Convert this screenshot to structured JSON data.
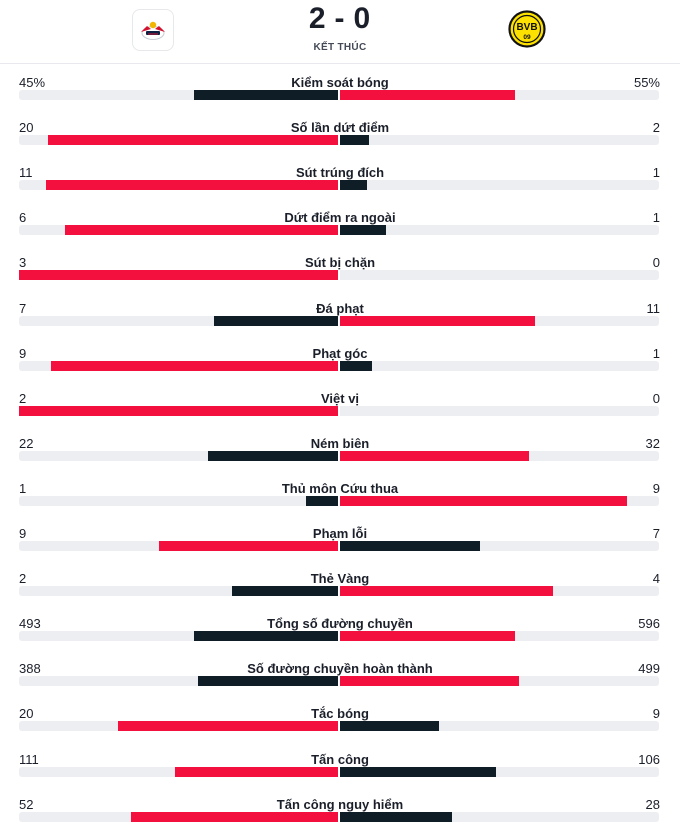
{
  "match": {
    "home_score": "2",
    "away_score": "0",
    "status": "KẾT THÚC"
  },
  "teams": {
    "home": {
      "logo_icon": "rb-leipzig-logo-icon"
    },
    "away": {
      "logo_icon": "bvb-logo-icon",
      "logo_text": "BVB",
      "logo_year": "09"
    }
  },
  "colors": {
    "leader": "#f3103f",
    "trailer": "#0f1d27",
    "track": "#eceef1"
  },
  "stats": [
    {
      "label": "Kiểm soát bóng",
      "home": "45%",
      "away": "55%",
      "home_value": 45,
      "away_value": 55
    },
    {
      "label": "Số lần dứt điểm",
      "home": "20",
      "away": "2",
      "home_value": 20,
      "away_value": 2
    },
    {
      "label": "Sút trúng đích",
      "home": "11",
      "away": "1",
      "home_value": 11,
      "away_value": 1
    },
    {
      "label": "Dứt điểm ra ngoài",
      "home": "6",
      "away": "1",
      "home_value": 6,
      "away_value": 1
    },
    {
      "label": "Sút bị chặn",
      "home": "3",
      "away": "0",
      "home_value": 3,
      "away_value": 0
    },
    {
      "label": "Đá phạt",
      "home": "7",
      "away": "11",
      "home_value": 7,
      "away_value": 11
    },
    {
      "label": "Phạt góc",
      "home": "9",
      "away": "1",
      "home_value": 9,
      "away_value": 1
    },
    {
      "label": "Việt vị",
      "home": "2",
      "away": "0",
      "home_value": 2,
      "away_value": 0
    },
    {
      "label": "Ném biên",
      "home": "22",
      "away": "32",
      "home_value": 22,
      "away_value": 32
    },
    {
      "label": "Thủ môn Cứu thua",
      "home": "1",
      "away": "9",
      "home_value": 1,
      "away_value": 9
    },
    {
      "label": "Phạm lỗi",
      "home": "9",
      "away": "7",
      "home_value": 9,
      "away_value": 7
    },
    {
      "label": "Thẻ Vàng",
      "home": "2",
      "away": "4",
      "home_value": 2,
      "away_value": 4
    },
    {
      "label": "Tổng số đường chuyền",
      "home": "493",
      "away": "596",
      "home_value": 493,
      "away_value": 596
    },
    {
      "label": "Số đường chuyền hoàn thành",
      "home": "388",
      "away": "499",
      "home_value": 388,
      "away_value": 499
    },
    {
      "label": "Tắc bóng",
      "home": "20",
      "away": "9",
      "home_value": 20,
      "away_value": 9
    },
    {
      "label": "Tấn công",
      "home": "111",
      "away": "106",
      "home_value": 111,
      "away_value": 106
    },
    {
      "label": "Tấn công nguy hiểm",
      "home": "52",
      "away": "28",
      "home_value": 52,
      "away_value": 28
    }
  ]
}
